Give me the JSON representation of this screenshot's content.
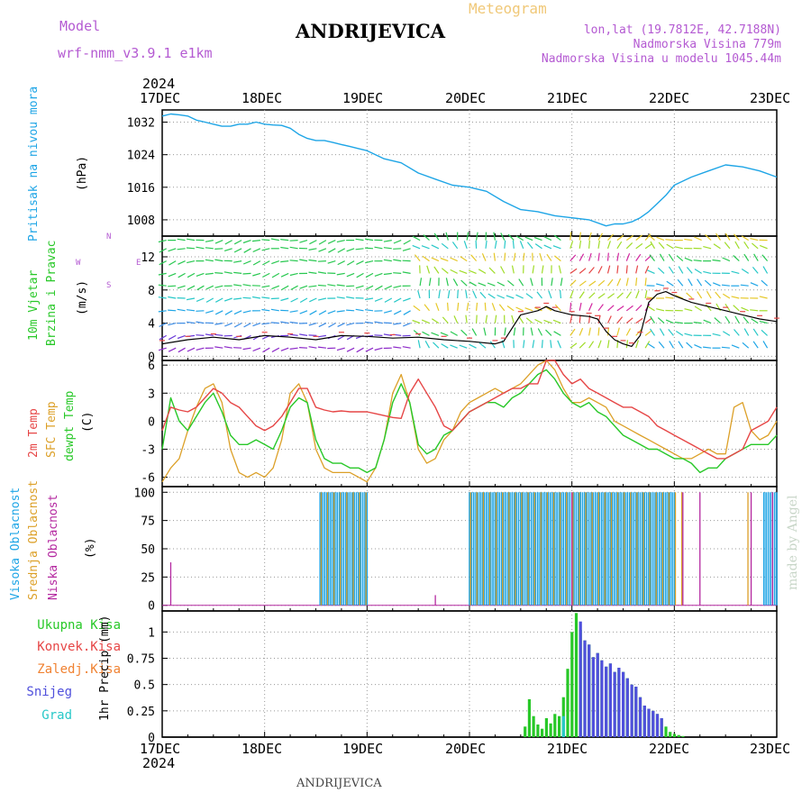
{
  "header": {
    "model_label": "Model",
    "model_value": "wrf-nmm_v3.9.1  e1km",
    "title": "ANDRIJEVICA",
    "subtitle": "Meteogram",
    "lonlat": "lon,lat (19.7812E, 42.7188N)",
    "altitude": "Nadmorska Visina 779m",
    "model_altitude": "Nadmorska Visina u modelu 1045.44m",
    "footer_title": "ANDRIJEVICA",
    "credit": "made by Angel"
  },
  "time_axis": {
    "year": "2024",
    "labels": [
      "17DEC",
      "18DEC",
      "19DEC",
      "20DEC",
      "21DEC",
      "22DEC",
      "23DEC"
    ]
  },
  "panels": {
    "pressure": {
      "label": "Pritisak na nivou mora",
      "unit": "(hPa)"
    },
    "wind": {
      "label1": "10m Vjetar",
      "label2": "Brzina i Pravac",
      "unit": "(m/s)",
      "compass_n": "N",
      "compass_s": "S",
      "compass_w": "W",
      "compass_e": "E"
    },
    "temp": {
      "label1": "2m Temp",
      "label2": "SFC Temp",
      "label3": "dewpt Temp",
      "unit": "(C)"
    },
    "cloud": {
      "label1": "Visoka Oblacnost",
      "label2": "Srednja Oblacnost",
      "label3": "Niska Oblacnost",
      "unit": "(%)"
    },
    "precip": {
      "unit": "1hr Precip (mm)",
      "legend": [
        "Ukupna Kisa",
        "Konvek.Kisa",
        "Zaledj.Kisa",
        "Snijeg",
        "Grad"
      ]
    }
  },
  "colors": {
    "pressure": "#1ea5e6",
    "temp2m": "#e64646",
    "sfc": "#dca028",
    "dewpt": "#28c828",
    "high_cloud": "#1ea5e6",
    "mid_cloud": "#dca028",
    "low_cloud": "#b428a0",
    "rain": "#28c828",
    "conv": "#e64646",
    "frz": "#f08232",
    "snow": "#5050dc",
    "hail": "#28c8c8"
  },
  "chart_data": [
    {
      "type": "line",
      "ylabel": "(hPa)",
      "ylim": [
        1004,
        1035
      ],
      "yticks": [
        1008,
        1016,
        1024,
        1032
      ],
      "xlim": [
        0,
        144
      ],
      "series": [
        {
          "name": "Pritisak na nivou mora",
          "x": [
            0,
            2,
            4,
            6,
            8,
            10,
            12,
            14,
            16,
            18,
            20,
            22,
            24,
            26,
            28,
            30,
            32,
            34,
            36,
            38,
            40,
            42,
            44,
            46,
            48,
            52,
            56,
            60,
            64,
            68,
            72,
            76,
            80,
            84,
            88,
            92,
            96,
            100,
            104,
            106,
            108,
            110,
            112,
            114,
            116,
            118,
            120,
            124,
            128,
            132,
            136,
            140,
            144
          ],
          "y": [
            1033.5,
            1034,
            1033.8,
            1033.5,
            1032.5,
            1032,
            1031.5,
            1031,
            1031,
            1031.5,
            1031.5,
            1032,
            1031.5,
            1031.3,
            1031.2,
            1030.5,
            1029,
            1028,
            1027.5,
            1027.5,
            1027,
            1026.5,
            1026,
            1025.5,
            1025,
            1023,
            1022,
            1019.5,
            1018,
            1016.5,
            1016,
            1015,
            1012.5,
            1010.5,
            1010,
            1009,
            1008.5,
            1008,
            1006.5,
            1007,
            1007,
            1007.5,
            1008.5,
            1010,
            1012,
            1014,
            1016.5,
            1018.5,
            1020,
            1021.5,
            1021,
            1020,
            1018.5
          ]
        }
      ]
    },
    {
      "type": "line",
      "ylabel": "(m/s)",
      "ylim": [
        -0.5,
        14.5
      ],
      "yticks": [
        0,
        4,
        8,
        12
      ],
      "xlim": [
        0,
        144
      ],
      "series": [
        {
          "name": "10m Vjetar",
          "x": [
            0,
            6,
            12,
            18,
            24,
            30,
            36,
            42,
            48,
            54,
            60,
            66,
            72,
            78,
            80,
            84,
            88,
            90,
            92,
            96,
            100,
            102,
            104,
            106,
            108,
            110,
            112,
            114,
            116,
            118,
            120,
            124,
            128,
            132,
            136,
            140,
            144
          ],
          "y": [
            1.5,
            2,
            2.3,
            2,
            2.5,
            2.3,
            2,
            2.5,
            2.4,
            2.2,
            2.3,
            2,
            1.8,
            1.5,
            1.8,
            5,
            5.5,
            6,
            5.5,
            5,
            4.8,
            4.5,
            3,
            2,
            1.5,
            1.2,
            2.5,
            6.5,
            7.5,
            7.8,
            7.3,
            6.5,
            6,
            5.5,
            5,
            4.5,
            4.2
          ]
        }
      ]
    },
    {
      "type": "line",
      "ylabel": "(C)",
      "ylim": [
        -7,
        6.5
      ],
      "yticks": [
        -6,
        -3,
        0,
        3,
        6
      ],
      "xlim": [
        0,
        144
      ],
      "series": [
        {
          "name": "2m Temp",
          "x": [
            0,
            2,
            4,
            6,
            8,
            10,
            12,
            14,
            16,
            18,
            20,
            22,
            24,
            26,
            28,
            30,
            32,
            34,
            36,
            38,
            40,
            42,
            44,
            46,
            48,
            50,
            52,
            54,
            56,
            58,
            60,
            62,
            64,
            66,
            68,
            70,
            72,
            74,
            76,
            78,
            80,
            82,
            84,
            86,
            88,
            90,
            92,
            94,
            96,
            98,
            100,
            102,
            104,
            106,
            108,
            110,
            112,
            114,
            116,
            118,
            120,
            122,
            124,
            126,
            128,
            130,
            132,
            134,
            136,
            138,
            140,
            142,
            144
          ],
          "y": [
            -1,
            1.5,
            1.2,
            1,
            1.5,
            2.5,
            3.5,
            3,
            2,
            1.5,
            0.5,
            -0.5,
            -1,
            -0.5,
            0.5,
            2,
            3.5,
            3.5,
            1.5,
            1.2,
            1,
            1.1,
            1,
            1,
            1,
            0.8,
            0.6,
            0.4,
            0.3,
            3,
            4.5,
            3,
            1.5,
            -0.5,
            -1,
            0,
            1,
            1.5,
            2,
            2.5,
            3,
            3.5,
            3.5,
            4,
            4,
            6.5,
            6.5,
            5,
            4,
            4.5,
            3.5,
            3,
            2.5,
            2,
            1.5,
            1.5,
            1,
            0.5,
            -0.5,
            -1,
            -1.5,
            -2,
            -2.5,
            -3,
            -3.5,
            -4,
            -4,
            -3.5,
            -3,
            -1,
            -0.5,
            0,
            1.5
          ]
        },
        {
          "name": "SFC Temp",
          "x": [
            0,
            2,
            4,
            6,
            8,
            10,
            12,
            14,
            16,
            18,
            20,
            22,
            24,
            26,
            28,
            30,
            32,
            34,
            36,
            38,
            40,
            42,
            44,
            46,
            48,
            50,
            52,
            54,
            56,
            58,
            60,
            62,
            64,
            66,
            68,
            70,
            72,
            74,
            76,
            78,
            80,
            82,
            84,
            86,
            88,
            90,
            92,
            94,
            96,
            98,
            100,
            102,
            104,
            106,
            108,
            110,
            112,
            114,
            116,
            118,
            120,
            122,
            124,
            126,
            128,
            130,
            132,
            134,
            136,
            138,
            140,
            142,
            144
          ],
          "y": [
            -6.5,
            -5,
            -4,
            -1,
            1.5,
            3.5,
            4,
            2,
            -3,
            -5.5,
            -6,
            -5.5,
            -6,
            -5,
            -2,
            3,
            4,
            2,
            -3,
            -5,
            -5.5,
            -5.5,
            -5.5,
            -6,
            -6.5,
            -5,
            -2,
            3,
            5,
            2,
            -3,
            -4.5,
            -4,
            -2,
            -1,
            1,
            2,
            2.5,
            3,
            3.5,
            3,
            3.5,
            4,
            5,
            6,
            6.5,
            5.5,
            3.5,
            2,
            2,
            2.5,
            2,
            1.5,
            0,
            -0.5,
            -1,
            -1.5,
            -2,
            -2.5,
            -3,
            -3.5,
            -4,
            -4,
            -3.5,
            -3,
            -3.5,
            -3.5,
            1.5,
            2,
            -1,
            -2,
            -1.5,
            0
          ]
        },
        {
          "name": "dewpt Temp",
          "x": [
            0,
            2,
            4,
            6,
            8,
            10,
            12,
            14,
            16,
            18,
            20,
            22,
            24,
            26,
            28,
            30,
            32,
            34,
            36,
            38,
            40,
            42,
            44,
            46,
            48,
            50,
            52,
            54,
            56,
            58,
            60,
            62,
            64,
            66,
            68,
            70,
            72,
            74,
            76,
            78,
            80,
            82,
            84,
            86,
            88,
            90,
            92,
            94,
            96,
            98,
            100,
            102,
            104,
            106,
            108,
            110,
            112,
            114,
            116,
            118,
            120,
            122,
            124,
            126,
            128,
            130,
            132,
            134,
            136,
            138,
            140,
            142,
            144
          ],
          "y": [
            -3,
            2.5,
            0,
            -1,
            0.5,
            2,
            3,
            1,
            -1.5,
            -2.5,
            -2.5,
            -2,
            -2.5,
            -3,
            -1,
            1.5,
            2.5,
            2,
            -2,
            -4,
            -4.5,
            -4.5,
            -5,
            -5,
            -5.5,
            -5,
            -2,
            2,
            4,
            2,
            -2.5,
            -3.5,
            -3,
            -1.5,
            -1,
            0,
            1,
            1.5,
            2,
            2,
            1.5,
            2.5,
            3,
            4,
            5,
            5.5,
            4.5,
            3,
            2,
            1.5,
            2,
            1,
            0.5,
            -0.5,
            -1.5,
            -2,
            -2.5,
            -3,
            -3,
            -3.5,
            -4,
            -4,
            -4.5,
            -5.5,
            -5,
            -5,
            -4,
            -3.5,
            -3,
            -2.5,
            -2.5,
            -2.5,
            -1.5
          ]
        }
      ]
    },
    {
      "type": "bar",
      "ylabel": "(%)",
      "ylim": [
        -5,
        105
      ],
      "yticks": [
        0,
        25,
        50,
        75,
        100
      ],
      "xlim": [
        0,
        144
      ],
      "series": [
        {
          "name": "Visoka Oblacnost",
          "spans": [
            [
              37,
              48
            ],
            [
              72,
              120
            ],
            [
              141,
              144
            ]
          ],
          "value": 100
        },
        {
          "name": "Srednja Oblacnost",
          "spans": [
            [
              37,
              48.5
            ],
            [
              72,
              123
            ],
            [
              137,
              137.5
            ]
          ],
          "value": 100
        },
        {
          "name": "Niska Oblacnost",
          "points": [
            [
              2,
              38
            ],
            [
              64,
              9
            ],
            [
              96,
              100
            ],
            [
              122,
              100
            ],
            [
              126,
              100
            ],
            [
              138,
              100
            ],
            [
              143,
              100
            ]
          ]
        }
      ]
    },
    {
      "type": "bar",
      "ylabel": "1hr Precip (mm)",
      "ylim": [
        0,
        1.2
      ],
      "yticks": [
        0,
        0.25,
        0.5,
        0.75,
        1
      ],
      "xlim": [
        0,
        144
      ],
      "series": [
        {
          "name": "Ukupna Kisa",
          "x": [
            85,
            86,
            87,
            88,
            89,
            90,
            91,
            92,
            93,
            94,
            95,
            96,
            97,
            98,
            99,
            100,
            101,
            102,
            103,
            104,
            105,
            106,
            107,
            108,
            109,
            110,
            111,
            112,
            113,
            114,
            115,
            116,
            117,
            118,
            119,
            120,
            121,
            122
          ],
          "values": [
            0.1,
            0.36,
            0.2,
            0.12,
            0.08,
            0.18,
            0.13,
            0.22,
            0.2,
            0.38,
            0.65,
            1.0,
            1.18,
            1.02,
            0.92,
            0.88,
            0.76,
            0.8,
            0.73,
            0.67,
            0.7,
            0.62,
            0.66,
            0.62,
            0.56,
            0.5,
            0.48,
            0.38,
            0.3,
            0.27,
            0.25,
            0.22,
            0.18,
            0.1,
            0.05,
            0.03,
            0.02,
            0.01
          ]
        },
        {
          "name": "Snijeg",
          "x": [
            98,
            99,
            100,
            101,
            102,
            103,
            104,
            105,
            106,
            107,
            108,
            109,
            110,
            111,
            112,
            113,
            114,
            115,
            116,
            117
          ],
          "values": [
            1.1,
            0.92,
            0.88,
            0.76,
            0.8,
            0.73,
            0.67,
            0.7,
            0.62,
            0.66,
            0.62,
            0.56,
            0.5,
            0.48,
            0.38,
            0.3,
            0.27,
            0.25,
            0.22,
            0.18
          ]
        },
        {
          "name": "Grad",
          "x": [
            94
          ],
          "values": [
            0.2
          ]
        }
      ]
    }
  ]
}
